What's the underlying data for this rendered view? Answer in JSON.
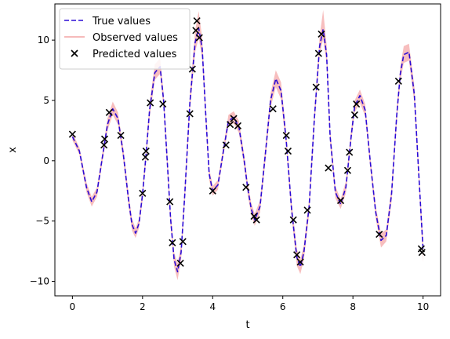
{
  "chart_data": {
    "type": "line",
    "xlabel": "t",
    "ylabel": "x",
    "xlim": [
      -0.5,
      10.5
    ],
    "ylim": [
      -11.2,
      13.0
    ],
    "xticks": [
      0,
      2,
      4,
      6,
      8,
      10
    ],
    "yticks": [
      -10,
      -5,
      0,
      5,
      10
    ],
    "legend_position": "top-left",
    "grid": false,
    "series": [
      {
        "name": "True values",
        "kind": "line",
        "style": "dashed",
        "color": "#2b0bd6",
        "x": [
          0.0,
          0.2,
          0.4,
          0.55,
          0.7,
          0.85,
          1.0,
          1.15,
          1.3,
          1.45,
          1.6,
          1.7,
          1.8,
          1.9,
          2.0,
          2.1,
          2.2,
          2.35,
          2.5,
          2.6,
          2.7,
          2.8,
          2.9,
          3.0,
          3.1,
          3.2,
          3.35,
          3.5,
          3.6,
          3.7,
          3.8,
          3.9,
          4.0,
          4.15,
          4.3,
          4.45,
          4.6,
          4.75,
          4.9,
          5.0,
          5.1,
          5.2,
          5.35,
          5.5,
          5.65,
          5.8,
          5.95,
          6.1,
          6.25,
          6.4,
          6.5,
          6.6,
          6.75,
          6.9,
          7.05,
          7.15,
          7.25,
          7.35,
          7.5,
          7.65,
          7.8,
          7.95,
          8.05,
          8.2,
          8.35,
          8.5,
          8.65,
          8.8,
          8.95,
          9.1,
          9.25,
          9.35,
          9.45,
          9.6,
          9.75,
          9.9,
          10.0
        ],
        "values": [
          2.0,
          0.8,
          -2.2,
          -3.4,
          -2.6,
          0.2,
          3.0,
          4.3,
          3.5,
          0.6,
          -3.2,
          -5.3,
          -6.0,
          -5.2,
          -2.8,
          0.5,
          4.2,
          7.3,
          7.8,
          5.0,
          0.2,
          -4.8,
          -8.2,
          -9.2,
          -7.6,
          -3.0,
          4.8,
          9.8,
          11.0,
          9.3,
          4.0,
          -1.1,
          -2.5,
          -2.0,
          0.7,
          3.3,
          3.6,
          2.8,
          0.0,
          -2.3,
          -4.0,
          -4.9,
          -3.8,
          0.5,
          5.0,
          6.8,
          5.8,
          1.6,
          -4.0,
          -8.0,
          -8.8,
          -7.6,
          -3.8,
          3.5,
          9.5,
          10.9,
          8.8,
          2.0,
          -2.6,
          -3.6,
          -2.2,
          2.0,
          4.5,
          5.4,
          4.2,
          -0.2,
          -4.3,
          -6.6,
          -6.2,
          -2.8,
          3.8,
          7.2,
          8.8,
          9.0,
          5.5,
          -2.3,
          -7.3
        ]
      },
      {
        "name": "Observed values",
        "kind": "band",
        "color": "#f4a3a3",
        "x": [
          0.0,
          0.2,
          0.4,
          0.55,
          0.7,
          0.85,
          1.0,
          1.15,
          1.3,
          1.45,
          1.6,
          1.7,
          1.8,
          1.9,
          2.0,
          2.1,
          2.2,
          2.35,
          2.5,
          2.6,
          2.7,
          2.8,
          2.9,
          3.0,
          3.1,
          3.2,
          3.35,
          3.5,
          3.6,
          3.7,
          3.8,
          3.9,
          4.0,
          4.15,
          4.3,
          4.45,
          4.6,
          4.75,
          4.9,
          5.0,
          5.1,
          5.2,
          5.35,
          5.5,
          5.65,
          5.8,
          5.95,
          6.1,
          6.25,
          6.4,
          6.5,
          6.6,
          6.75,
          6.9,
          7.05,
          7.15,
          7.25,
          7.35,
          7.5,
          7.65,
          7.8,
          7.95,
          8.05,
          8.2,
          8.35,
          8.5,
          8.65,
          8.8,
          8.95,
          9.1,
          9.25,
          9.35,
          9.45,
          9.6,
          9.75,
          9.9,
          10.0
        ],
        "lower": [
          1.7,
          0.5,
          -2.6,
          -3.8,
          -3.0,
          -0.2,
          2.5,
          3.8,
          3.0,
          0.1,
          -3.7,
          -5.8,
          -6.4,
          -5.6,
          -3.3,
          0.0,
          3.6,
          6.7,
          7.2,
          4.4,
          -0.4,
          -5.4,
          -8.8,
          -9.9,
          -8.2,
          -3.6,
          4.1,
          9.0,
          10.2,
          8.5,
          3.4,
          -1.6,
          -2.9,
          -2.4,
          0.3,
          2.9,
          3.1,
          2.3,
          -0.5,
          -2.8,
          -4.5,
          -5.4,
          -4.3,
          -0.1,
          4.4,
          6.1,
          5.1,
          1.0,
          -4.6,
          -8.7,
          -9.4,
          -8.2,
          -4.4,
          2.9,
          8.8,
          10.1,
          8.1,
          1.4,
          -3.1,
          -4.0,
          -2.7,
          1.5,
          4.0,
          4.8,
          3.7,
          -0.7,
          -4.8,
          -7.2,
          -6.7,
          -3.4,
          3.2,
          6.6,
          8.1,
          8.3,
          4.8,
          -2.9,
          -8.4
        ],
        "upper": [
          2.3,
          1.1,
          -1.8,
          -3.0,
          -2.2,
          0.6,
          3.5,
          4.9,
          4.0,
          1.1,
          -2.7,
          -4.8,
          -5.6,
          -4.8,
          -2.3,
          1.0,
          4.8,
          8.0,
          8.5,
          5.6,
          0.8,
          -4.2,
          -7.6,
          -8.5,
          -7.0,
          -2.4,
          5.5,
          10.8,
          12.4,
          10.2,
          4.6,
          -0.6,
          -2.1,
          -1.6,
          1.1,
          3.8,
          4.1,
          3.3,
          0.5,
          -1.8,
          -3.5,
          -4.4,
          -3.3,
          1.1,
          5.6,
          7.5,
          6.5,
          2.2,
          -3.4,
          -7.3,
          -8.2,
          -7.0,
          -3.2,
          4.1,
          10.3,
          12.5,
          9.6,
          2.6,
          -2.1,
          -3.2,
          -1.7,
          2.5,
          5.0,
          5.9,
          4.7,
          0.3,
          -3.8,
          -6.0,
          -5.7,
          -2.2,
          4.4,
          7.8,
          9.5,
          9.7,
          6.2,
          -1.7,
          -6.6
        ]
      },
      {
        "name": "Predicted values",
        "kind": "scatter",
        "marker": "x",
        "color": "#000000",
        "x": [
          0.0,
          0.9,
          0.92,
          1.05,
          1.38,
          2.0,
          2.08,
          2.1,
          2.22,
          2.58,
          2.78,
          2.85,
          3.08,
          3.15,
          3.35,
          3.42,
          3.52,
          3.55,
          3.62,
          4.0,
          4.38,
          4.5,
          4.6,
          4.72,
          4.95,
          5.18,
          5.25,
          5.72,
          6.1,
          6.15,
          6.3,
          6.4,
          6.5,
          6.7,
          6.95,
          7.02,
          7.1,
          7.3,
          7.65,
          7.85,
          7.9,
          8.05,
          8.1,
          8.75,
          9.3,
          9.95,
          9.97
        ],
        "values": [
          2.2,
          1.3,
          1.8,
          4.0,
          2.1,
          -2.7,
          0.3,
          0.8,
          4.8,
          4.7,
          -3.4,
          -6.8,
          -8.5,
          -6.7,
          3.9,
          7.6,
          10.8,
          11.6,
          10.2,
          -2.5,
          1.3,
          3.0,
          3.5,
          2.9,
          -2.2,
          -4.6,
          -4.9,
          4.3,
          2.1,
          0.8,
          -4.9,
          -7.8,
          -8.4,
          -4.1,
          6.1,
          8.9,
          10.5,
          -0.6,
          -3.3,
          -0.8,
          0.7,
          3.8,
          4.7,
          -6.1,
          6.6,
          -7.3,
          -7.6
        ]
      }
    ]
  }
}
